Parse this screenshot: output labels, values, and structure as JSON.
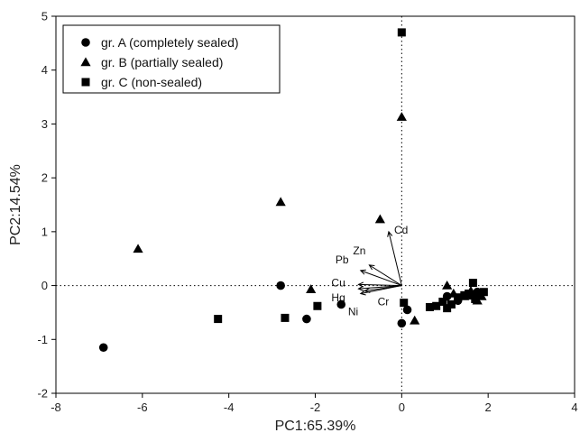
{
  "chart_data": {
    "type": "scatter",
    "xlabel": "PC1:65.39%",
    "ylabel": "PC2:14.54%",
    "xlim": [
      -8,
      4
    ],
    "ylim": [
      -2,
      5
    ],
    "xticks": [
      -8,
      -6,
      -4,
      -2,
      0,
      2,
      4
    ],
    "yticks": [
      -2,
      -1,
      0,
      1,
      2,
      3,
      4,
      5
    ],
    "reference_lines": {
      "x": 0,
      "y": 0,
      "style": "dotted"
    },
    "legend_position": "top-left",
    "series": [
      {
        "name": "gr. A (completely sealed)",
        "marker": "circle",
        "color": "#000000",
        "points": [
          {
            "x": -6.9,
            "y": -1.15
          },
          {
            "x": -2.8,
            "y": 0.0
          },
          {
            "x": -2.2,
            "y": -0.62
          },
          {
            "x": -1.4,
            "y": -0.35
          },
          {
            "x": 0.0,
            "y": -0.7
          },
          {
            "x": 0.13,
            "y": -0.45
          },
          {
            "x": 1.05,
            "y": -0.2
          },
          {
            "x": 1.3,
            "y": -0.28
          },
          {
            "x": 1.6,
            "y": -0.18
          },
          {
            "x": 1.75,
            "y": -0.12
          }
        ]
      },
      {
        "name": "gr. B (partially sealed)",
        "marker": "triangle",
        "color": "#000000",
        "points": [
          {
            "x": -6.1,
            "y": 0.68
          },
          {
            "x": -2.8,
            "y": 1.55
          },
          {
            "x": -2.1,
            "y": -0.07
          },
          {
            "x": -0.5,
            "y": 1.23
          },
          {
            "x": 0.0,
            "y": 3.13
          },
          {
            "x": 0.3,
            "y": -0.65
          },
          {
            "x": 1.05,
            "y": 0.0
          },
          {
            "x": 1.2,
            "y": -0.15
          },
          {
            "x": 1.45,
            "y": -0.2
          },
          {
            "x": 1.75,
            "y": -0.28
          },
          {
            "x": 1.85,
            "y": -0.2
          },
          {
            "x": 1.6,
            "y": -0.1
          }
        ]
      },
      {
        "name": "gr. C (non-sealed)",
        "marker": "square",
        "color": "#000000",
        "points": [
          {
            "x": -4.25,
            "y": -0.62
          },
          {
            "x": -2.7,
            "y": -0.6
          },
          {
            "x": -1.95,
            "y": -0.38
          },
          {
            "x": 0.0,
            "y": 4.7
          },
          {
            "x": 0.05,
            "y": -0.32
          },
          {
            "x": 0.65,
            "y": -0.4
          },
          {
            "x": 0.8,
            "y": -0.38
          },
          {
            "x": 0.95,
            "y": -0.3
          },
          {
            "x": 1.05,
            "y": -0.42
          },
          {
            "x": 1.15,
            "y": -0.35
          },
          {
            "x": 1.3,
            "y": -0.22
          },
          {
            "x": 1.45,
            "y": -0.18
          },
          {
            "x": 1.55,
            "y": -0.15
          },
          {
            "x": 1.65,
            "y": 0.05
          },
          {
            "x": 1.7,
            "y": -0.25
          },
          {
            "x": 1.8,
            "y": -0.15
          },
          {
            "x": 1.9,
            "y": -0.12
          }
        ]
      }
    ],
    "loadings": [
      {
        "label": "Cd",
        "x": -0.3,
        "y": 1.0
      },
      {
        "label": "Zn",
        "x": -0.75,
        "y": 0.38
      },
      {
        "label": "Pb",
        "x": -0.95,
        "y": 0.28
      },
      {
        "label": "Cu",
        "x": -1.0,
        "y": 0.02
      },
      {
        "label": "Hg",
        "x": -1.0,
        "y": -0.06
      },
      {
        "label": "Cr",
        "x": -0.85,
        "y": -0.1
      },
      {
        "label": "Ni",
        "x": -0.95,
        "y": -0.15
      }
    ]
  }
}
